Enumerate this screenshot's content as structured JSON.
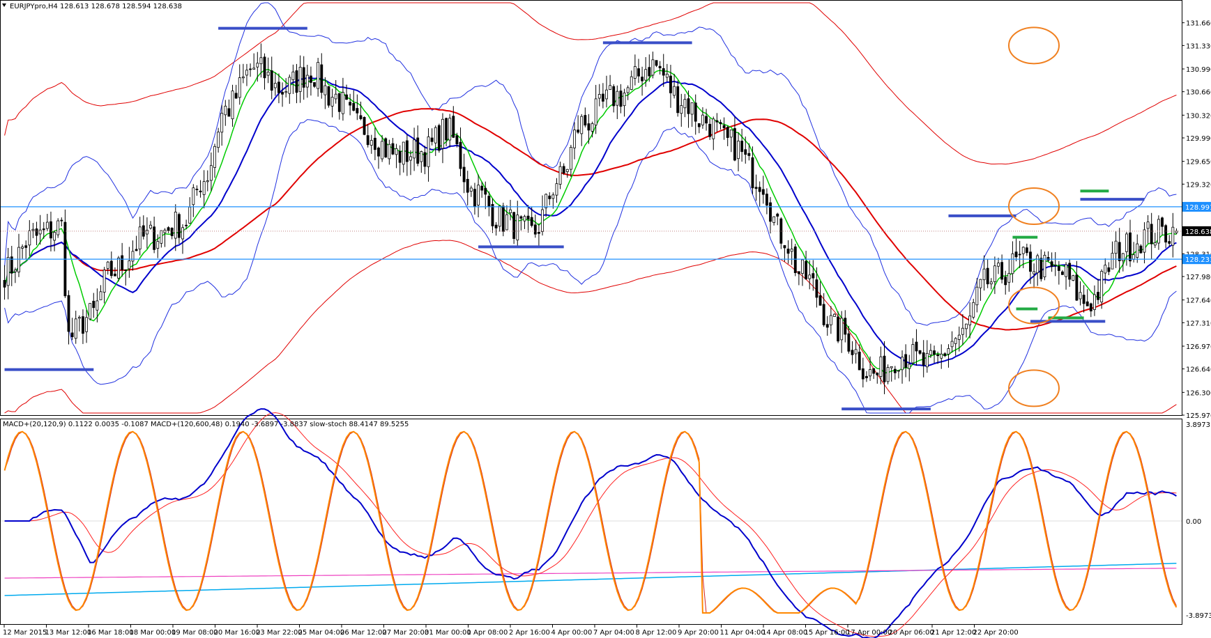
{
  "header": {
    "main_info": "EURJPYpro,H4  128.613 128.678 128.594 128.638",
    "indicator_info": "MACD+(20,120,9) 0.1122 0.0035 -0.1087  MACD+(120,600,48) 0.1940 -3.6897 -3.8837  slow-stoch 88.4147 89.5255"
  },
  "chart_data": [
    {
      "type": "candlestick",
      "symbol": "EURJPYpro",
      "timeframe": "H4",
      "ohlc_last": {
        "open": 128.613,
        "high": 128.678,
        "low": 128.594,
        "close": 128.638
      },
      "ylim": [
        125.97,
        131.99
      ],
      "y_ticks": [
        "131.660",
        "131.330",
        "130.990",
        "130.660",
        "130.320",
        "129.990",
        "129.650",
        "129.320",
        "128.310",
        "127.980",
        "127.640",
        "127.310",
        "126.970",
        "126.640",
        "126.300",
        "125.970"
      ],
      "price_tags": [
        {
          "value": 128.991,
          "label": "128.991",
          "color": "#1e90ff"
        },
        {
          "value": 128.638,
          "label": "128.638",
          "color": "#000000"
        },
        {
          "value": 128.231,
          "label": "128.231",
          "color": "#1e90ff"
        }
      ],
      "horizontal_lines": [
        128.991,
        128.231
      ],
      "dotted_line": 128.638,
      "x_labels": [
        "12 Mar 2015",
        "13 Mar 12:00",
        "16 Mar 18:00",
        "18 Mar 00:00",
        "19 Mar 08:00",
        "20 Mar 16:00",
        "23 Mar 22:00",
        "25 Mar 04:00",
        "26 Mar 12:00",
        "27 Mar 20:00",
        "31 Mar 00:00",
        "1 Apr 08:00",
        "2 Apr 16:00",
        "4 Apr 00:00",
        "7 Apr 04:00",
        "8 Apr 12:00",
        "9 Apr 20:00",
        "11 Apr 04:00",
        "14 Apr 08:00",
        "15 Apr 16:00",
        "17 Apr 00:00",
        "20 Apr 06:00",
        "21 Apr 12:00",
        "22 Apr 20:00"
      ],
      "support_resistance": [
        {
          "color": "#3a4fc8",
          "start": 0,
          "end": 25,
          "price": 126.63
        },
        {
          "color": "#3a4fc8",
          "start": 60,
          "end": 85,
          "price": 131.58
        },
        {
          "color": "#3a4fc8",
          "start": 133,
          "end": 157,
          "price": 128.41
        },
        {
          "color": "#3a4fc8",
          "start": 168,
          "end": 193,
          "price": 131.37
        },
        {
          "color": "#3a4fc8",
          "start": 235,
          "end": 260,
          "price": 126.06
        },
        {
          "color": "#3a4fc8",
          "start": 265,
          "end": 284,
          "price": 128.86
        },
        {
          "color": "#3a4fc8",
          "start": 288,
          "end": 309,
          "price": 127.33
        },
        {
          "color": "#3a4fc8",
          "start": 302,
          "end": 320,
          "price": 129.1
        },
        {
          "color": "#22aa44",
          "start": 283,
          "end": 290,
          "price": 128.55
        },
        {
          "color": "#22aa44",
          "start": 284,
          "end": 290,
          "price": 127.51
        },
        {
          "color": "#22aa44",
          "start": 293,
          "end": 303,
          "price": 127.38
        },
        {
          "color": "#22aa44",
          "start": 302,
          "end": 310,
          "price": 129.22
        }
      ],
      "orange_circles": [
        131.33,
        129.0,
        127.56,
        126.36
      ]
    },
    {
      "type": "line",
      "panel": "oscillator",
      "y_ticks": [
        "3.8973",
        "0.00",
        "-3.8973"
      ],
      "ylim": [
        -3.8973,
        3.8973
      ]
    }
  ],
  "colors": {
    "bull_candle": "#ffffff",
    "bear_candle": "#000000",
    "ma_fast": "#00cc00",
    "ma_mid": "#0000cc",
    "ma_slow": "#e00000",
    "bands": "#2030e0",
    "stoch_main": "#ff8800",
    "stoch_signal": "#d02020",
    "macd_long": "#0000cc",
    "signal_long": "#ff2020",
    "macd_slow": "#00aaee",
    "signal_slow": "#ee40c0",
    "level_line": "#1e90ff",
    "circle": "#f08020"
  }
}
